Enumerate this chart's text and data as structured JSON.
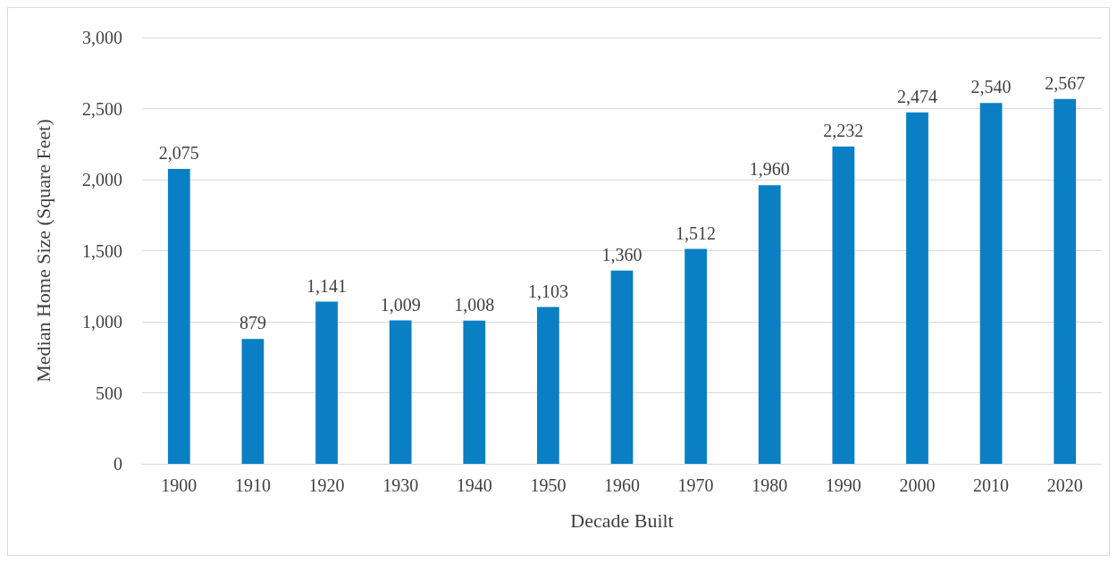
{
  "chart_data": {
    "type": "bar",
    "xlabel": "Decade Built",
    "ylabel": "Median Home Size (Square Feet)",
    "categories": [
      "1900",
      "1910",
      "1920",
      "1930",
      "1940",
      "1950",
      "1960",
      "1970",
      "1980",
      "1990",
      "2000",
      "2010",
      "2020"
    ],
    "values": [
      2075,
      879,
      1141,
      1009,
      1008,
      1103,
      1360,
      1512,
      1960,
      2232,
      2474,
      2540,
      2567
    ],
    "color": "#0b7fc3",
    "ylim": [
      0,
      3000
    ],
    "yticks": [
      {
        "value": 0,
        "label": "0"
      },
      {
        "value": 500,
        "label": "500"
      },
      {
        "value": 1000,
        "label": "1,000"
      },
      {
        "value": 1500,
        "label": "1,500"
      },
      {
        "value": 2000,
        "label": "2,000"
      },
      {
        "value": 2500,
        "label": "2,500"
      },
      {
        "value": 3000,
        "label": "3,000"
      }
    ],
    "value_labels": [
      "2,075",
      "879",
      "1,141",
      "1,009",
      "1,008",
      "1,103",
      "1,360",
      "1,512",
      "1,960",
      "2,232",
      "2,474",
      "2,540",
      "2,567"
    ],
    "grid": "y"
  }
}
